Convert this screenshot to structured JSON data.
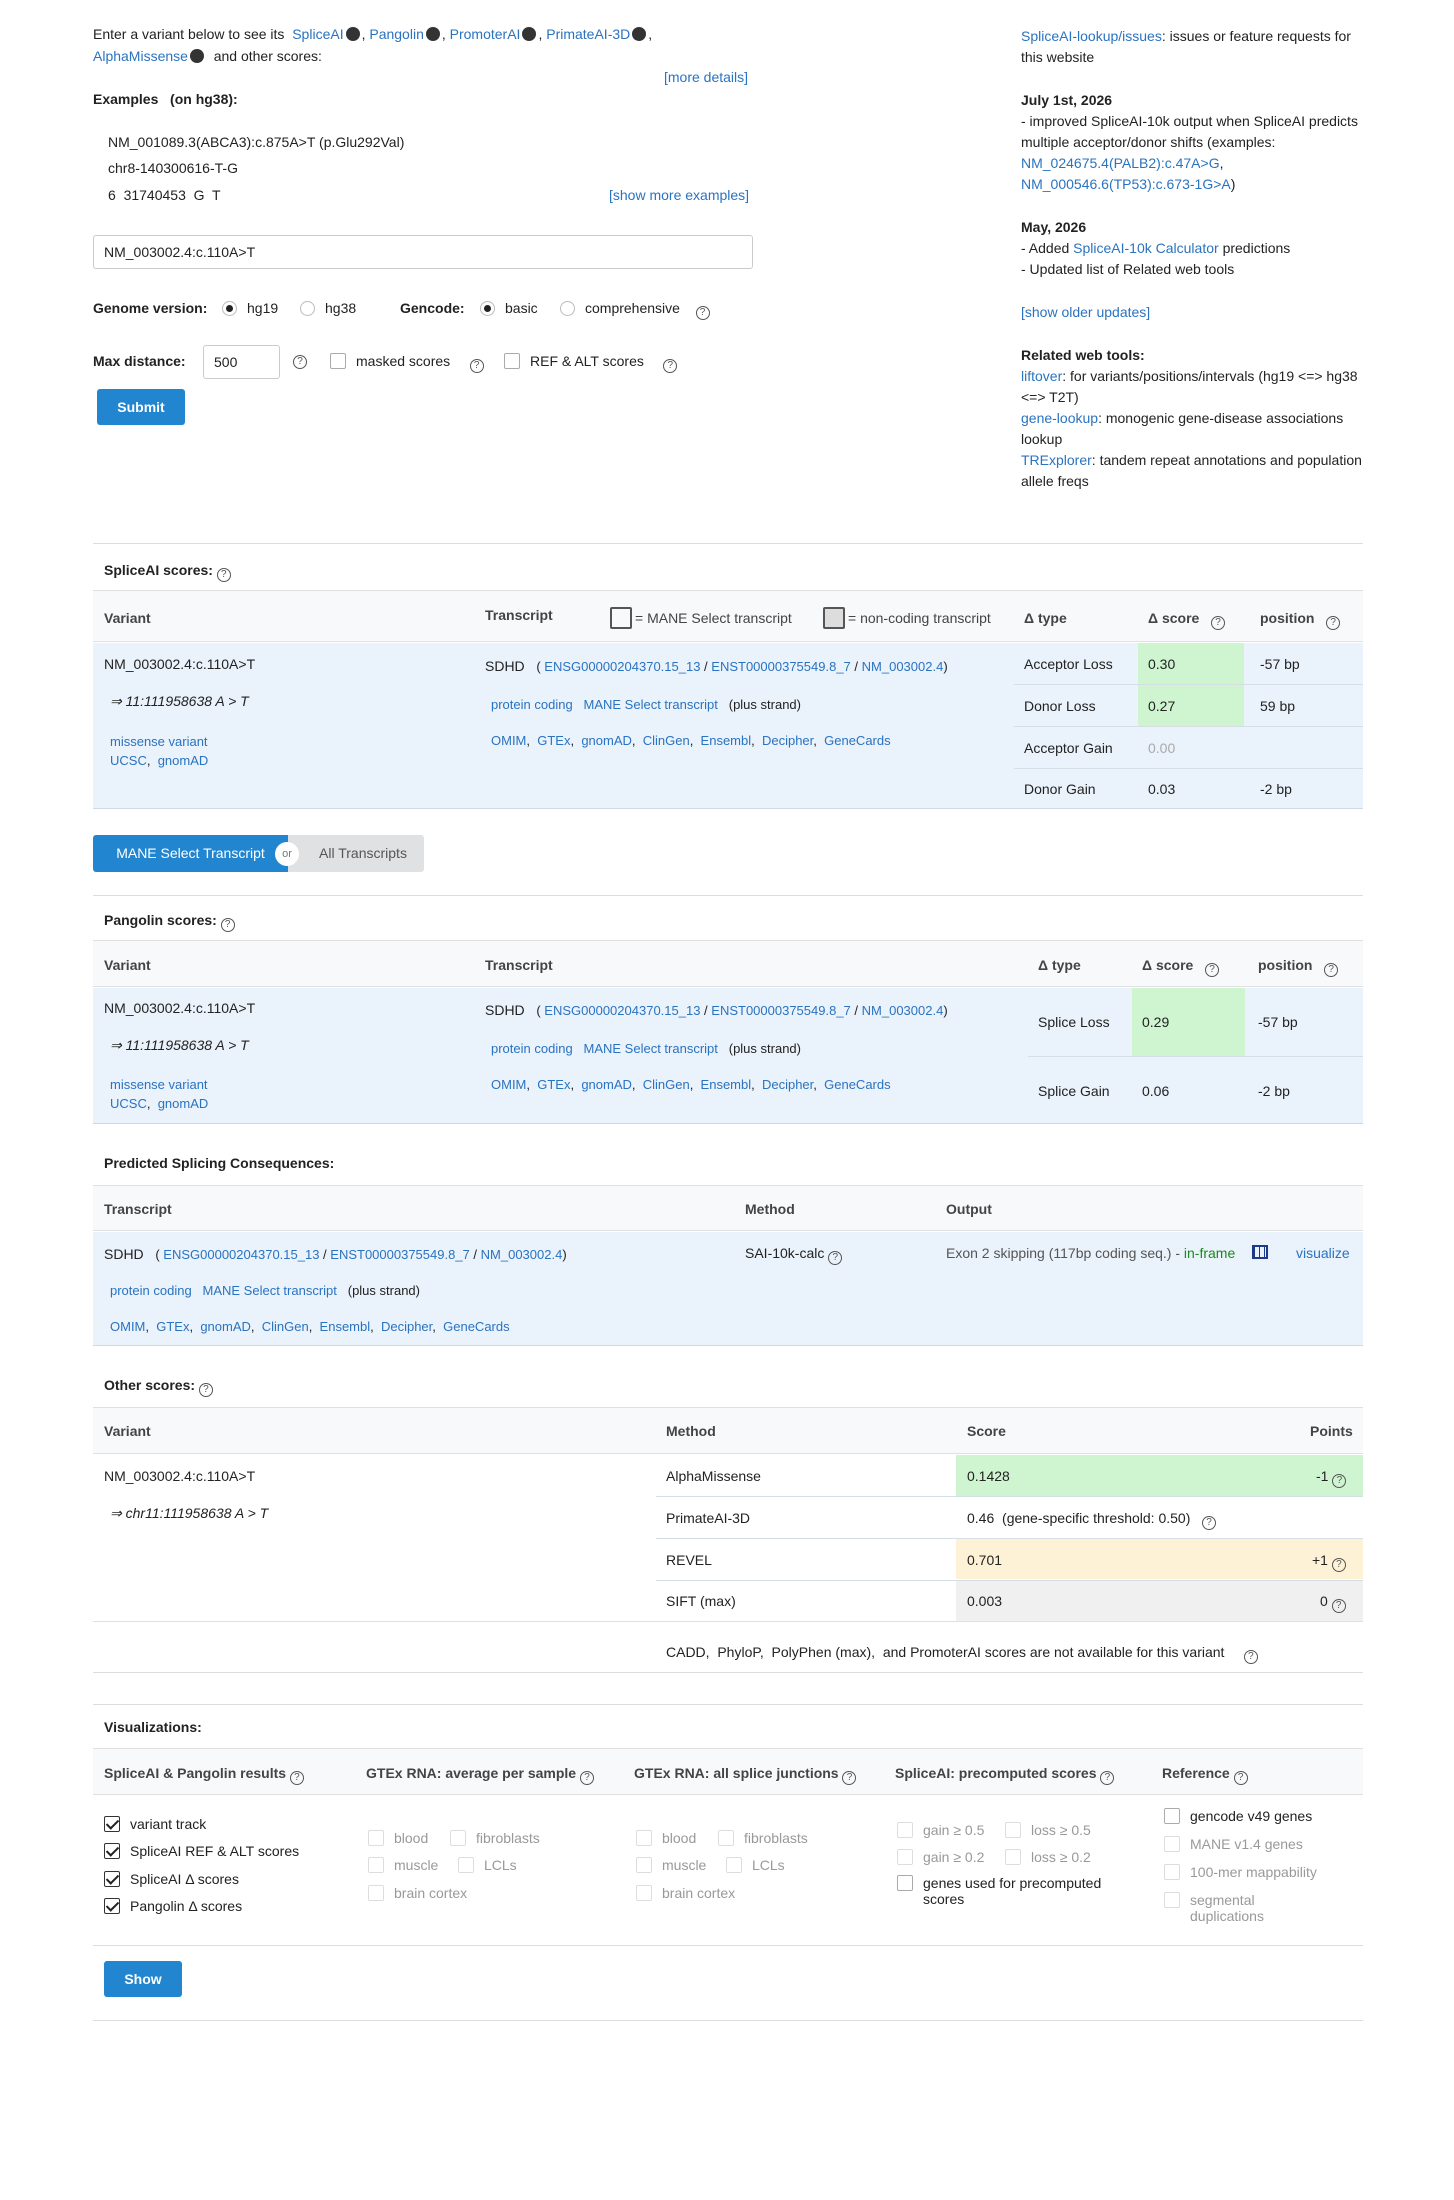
{
  "intro": {
    "text1": "Enter a variant below to see its",
    "tools": [
      "SpliceAI",
      "Pangolin",
      "PromoterAI",
      "PrimateAI-3D",
      "AlphaMissense"
    ],
    "text2": "and other scores:",
    "more_details": "[more details]"
  },
  "examples": {
    "title": "Examples",
    "hg": "(on hg38):",
    "items": [
      "NM_001089.3(ABCA3):c.875A>T (p.Glu292Val)",
      "chr8-140300616-T-G",
      "6  31740453  G  T"
    ],
    "show_more": "[show more examples]"
  },
  "form": {
    "variant_value": "NM_003002.4:c.110A>T",
    "genome_label": "Genome version:",
    "genome_options": [
      "hg19",
      "hg38"
    ],
    "gencode_label": "Gencode:",
    "gencode_options": [
      "basic",
      "comprehensive"
    ],
    "max_distance_label": "Max distance:",
    "max_distance_value": "500",
    "masked_label": "masked scores",
    "refalt_label": "REF & ALT scores",
    "submit": "Submit"
  },
  "news": {
    "issues_link": "SpliceAI-lookup/issues",
    "issues_text": ": issues or feature requests for this website",
    "u1_date": "July 1st, 2026",
    "u1_text": "- improved SpliceAI-10k output when SpliceAI predicts multiple acceptor/donor shifts (examples:",
    "u1_link1": "NM_024675.4(PALB2):c.47A>G",
    "u1_link2": "NM_000546.6(TP53):c.673-1G>A",
    "u2_date": "May, 2026",
    "u2_prefix": "- Added",
    "u2_link": "SpliceAI-10k Calculator",
    "u2_suffix": "predictions",
    "u2_line2": "- Updated list of Related web tools",
    "older": "[show older updates]",
    "tools_title": "Related web tools:",
    "tools": [
      {
        "name": "liftover",
        "desc": ": for variants/positions/intervals (hg19 <=> hg38 <=> T2T)"
      },
      {
        "name": "gene-lookup",
        "desc": ": monogenic gene-disease associations lookup"
      },
      {
        "name": "TRExplorer",
        "desc": ": tandem repeat annotations and population allele freqs"
      }
    ]
  },
  "spliceai": {
    "title": "SpliceAI scores:",
    "h_variant": "Variant",
    "h_transcript": "Transcript",
    "legend_mane": "= MANE Select transcript",
    "legend_noncoding": "= non-coding transcript",
    "h_type": "Δ type",
    "h_score": "Δ score",
    "h_pos": "position",
    "variant": "NM_003002.4:c.110A>T",
    "arrow": "⇒ 11:111958638 A > T",
    "consequence": "missense variant",
    "ucsc": "UCSC",
    "gnomad": "gnomAD",
    "gene": "SDHD",
    "ensg": "ENSG00000204370.15_13",
    "enst": "ENST00000375549.8_7",
    "nm": "NM_003002.4",
    "protein_coding": "protein coding",
    "mane_select": "MANE Select transcript",
    "strand": "(plus strand)",
    "links": [
      "OMIM",
      "GTEx",
      "gnomAD",
      "ClinGen",
      "Ensembl",
      "Decipher",
      "GeneCards"
    ],
    "rows": [
      {
        "type": "Acceptor Loss",
        "score": "0.30",
        "pos": "-57 bp"
      },
      {
        "type": "Donor Loss",
        "score": "0.27",
        "pos": "59 bp"
      },
      {
        "type": "Acceptor Gain",
        "score": "0.00",
        "pos": ""
      },
      {
        "type": "Donor Gain",
        "score": "0.03",
        "pos": "-2 bp"
      }
    ]
  },
  "toggle": {
    "mane": "MANE Select Transcript",
    "or": "or",
    "all": "All Transcripts"
  },
  "pangolin": {
    "title": "Pangolin scores:",
    "rows": [
      {
        "type": "Splice Loss",
        "score": "0.29",
        "pos": "-57 bp"
      },
      {
        "type": "Splice Gain",
        "score": "0.06",
        "pos": "-2 bp"
      }
    ]
  },
  "psc": {
    "title": "Predicted Splicing Consequences:",
    "h_transcript": "Transcript",
    "h_method": "Method",
    "h_output": "Output",
    "method": "SAI-10k-calc",
    "output": "Exon 2 skipping (117bp coding seq.) -",
    "inframe": "in-frame",
    "visualize": "visualize"
  },
  "other": {
    "title": "Other scores:",
    "h_variant": "Variant",
    "h_method": "Method",
    "h_score": "Score",
    "h_points": "Points",
    "variant": "NM_003002.4:c.110A>T",
    "arrow": "⇒ chr11:111958638 A > T",
    "rows": [
      {
        "method": "AlphaMissense",
        "score": "0.1428",
        "points": "-1"
      },
      {
        "method": "PrimateAI-3D",
        "score": "0.46  (gene-specific threshold: 0.50)",
        "points": ""
      },
      {
        "method": "REVEL",
        "score": "0.701",
        "points": "+1"
      },
      {
        "method": "SIFT (max)",
        "score": "0.003",
        "points": "0"
      }
    ],
    "note": "CADD,  PhyloP,  PolyPhen (max),  and PromoterAI scores are not available for this variant"
  },
  "viz": {
    "title": "Visualizations:",
    "cols": [
      "SpliceAI & Pangolin results",
      "GTEx RNA: average per sample",
      "GTEx RNA: all splice junctions",
      "SpliceAI: precomputed scores",
      "Reference"
    ],
    "c1": [
      "variant track",
      "SpliceAI REF & ALT scores",
      "SpliceAI Δ  scores",
      "Pangolin Δ  scores"
    ],
    "gtex": [
      "blood",
      "fibroblasts",
      "muscle",
      "LCLs",
      "brain cortex"
    ],
    "pre": [
      "gain ≥ 0.5",
      "loss ≥ 0.5",
      "gain ≥ 0.2",
      "loss ≥ 0.2",
      "genes used for precomputed scores"
    ],
    "ref": [
      "gencode v49 genes",
      "MANE v1.4 genes",
      "100-mer mappability",
      "segmental duplications"
    ],
    "show": "Show"
  },
  "colors": {
    "link": "#2a73c0",
    "button": "#2185d0",
    "green": "#cef5d0",
    "yellow": "#fdf2d5",
    "blue_bg": "#eaf2fb"
  }
}
